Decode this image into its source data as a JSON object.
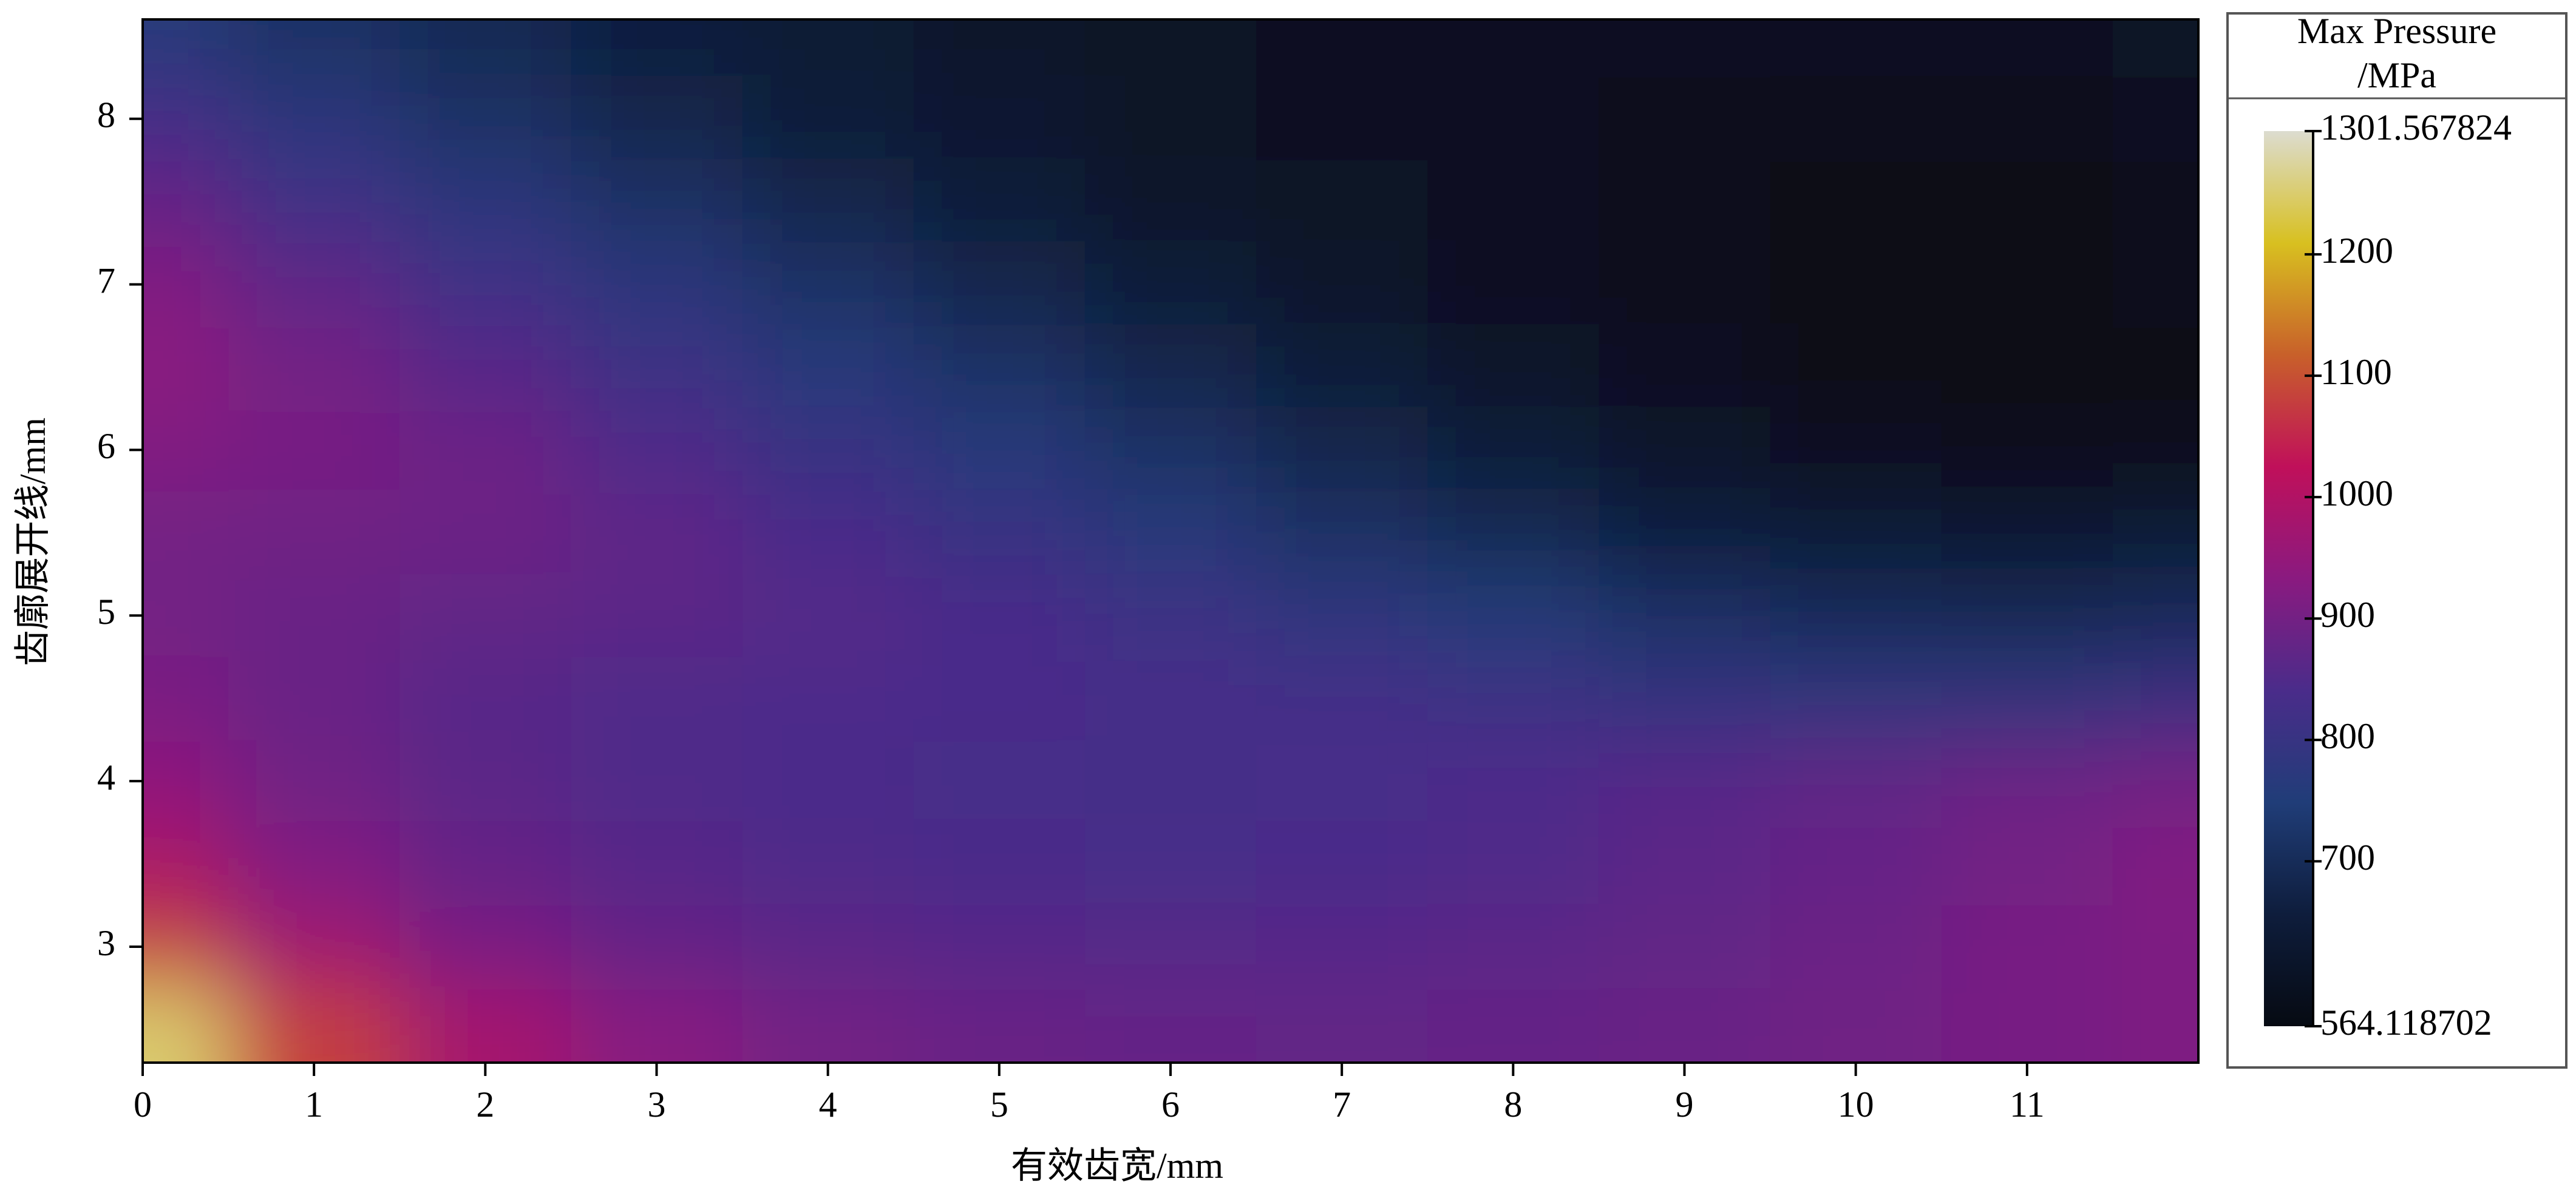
{
  "chart_data": {
    "type": "contour",
    "x_label": "有效齿宽/mm",
    "y_label": "齿廓展开线/mm",
    "colorbar_title": [
      "Max Pressure",
      "/MPa"
    ],
    "xlim": [
      0,
      12
    ],
    "ylim": [
      2.3,
      8.6
    ],
    "xticks": [
      0,
      1,
      2,
      3,
      4,
      5,
      6,
      7,
      8,
      9,
      10,
      11
    ],
    "yticks": [
      3,
      4,
      5,
      6,
      7,
      8
    ],
    "clim": [
      564.118702,
      1301.567824
    ],
    "cticks": [
      564.118702,
      700,
      800,
      900,
      1000,
      1100,
      1200,
      1301.567824
    ],
    "colormap": [
      "#060a12",
      "#0e1d3c",
      "#203d78",
      "#4a2c8a",
      "#8a1a80",
      "#c0105a",
      "#c8602a",
      "#d8c020",
      "#dcdcd0"
    ],
    "x": [
      0,
      1,
      2,
      3,
      4,
      5,
      6,
      7,
      8,
      9,
      10,
      11,
      12
    ],
    "y": [
      8.5,
      8.0,
      7.5,
      7.0,
      6.5,
      6.0,
      5.5,
      5.0,
      4.5,
      4.0,
      3.5,
      3.0,
      2.5
    ],
    "z": [
      [
        760,
        720,
        690,
        660,
        640,
        620,
        610,
        600,
        600,
        600,
        600,
        600,
        610
      ],
      [
        830,
        770,
        720,
        680,
        650,
        630,
        610,
        600,
        595,
        590,
        590,
        590,
        600
      ],
      [
        880,
        820,
        770,
        720,
        680,
        650,
        620,
        605,
        595,
        585,
        580,
        580,
        590
      ],
      [
        920,
        870,
        820,
        770,
        720,
        680,
        650,
        620,
        600,
        585,
        575,
        575,
        585
      ],
      [
        935,
        900,
        860,
        810,
        760,
        720,
        680,
        650,
        620,
        595,
        575,
        570,
        580
      ],
      [
        920,
        905,
        890,
        850,
        800,
        760,
        720,
        680,
        650,
        620,
        595,
        585,
        590
      ],
      [
        900,
        895,
        890,
        870,
        840,
        800,
        760,
        720,
        690,
        660,
        640,
        630,
        640
      ],
      [
        900,
        885,
        875,
        865,
        855,
        840,
        810,
        780,
        750,
        720,
        700,
        690,
        700
      ],
      [
        910,
        885,
        860,
        850,
        845,
        840,
        835,
        830,
        810,
        790,
        780,
        780,
        800
      ],
      [
        940,
        895,
        865,
        850,
        840,
        832,
        830,
        835,
        845,
        860,
        875,
        890,
        900
      ],
      [
        990,
        920,
        880,
        860,
        850,
        840,
        835,
        840,
        850,
        865,
        880,
        900,
        920
      ],
      [
        1080,
        970,
        910,
        880,
        865,
        860,
        858,
        860,
        865,
        875,
        890,
        905,
        915
      ],
      [
        1250,
        1080,
        980,
        930,
        900,
        885,
        880,
        878,
        880,
        885,
        895,
        905,
        915
      ]
    ]
  }
}
